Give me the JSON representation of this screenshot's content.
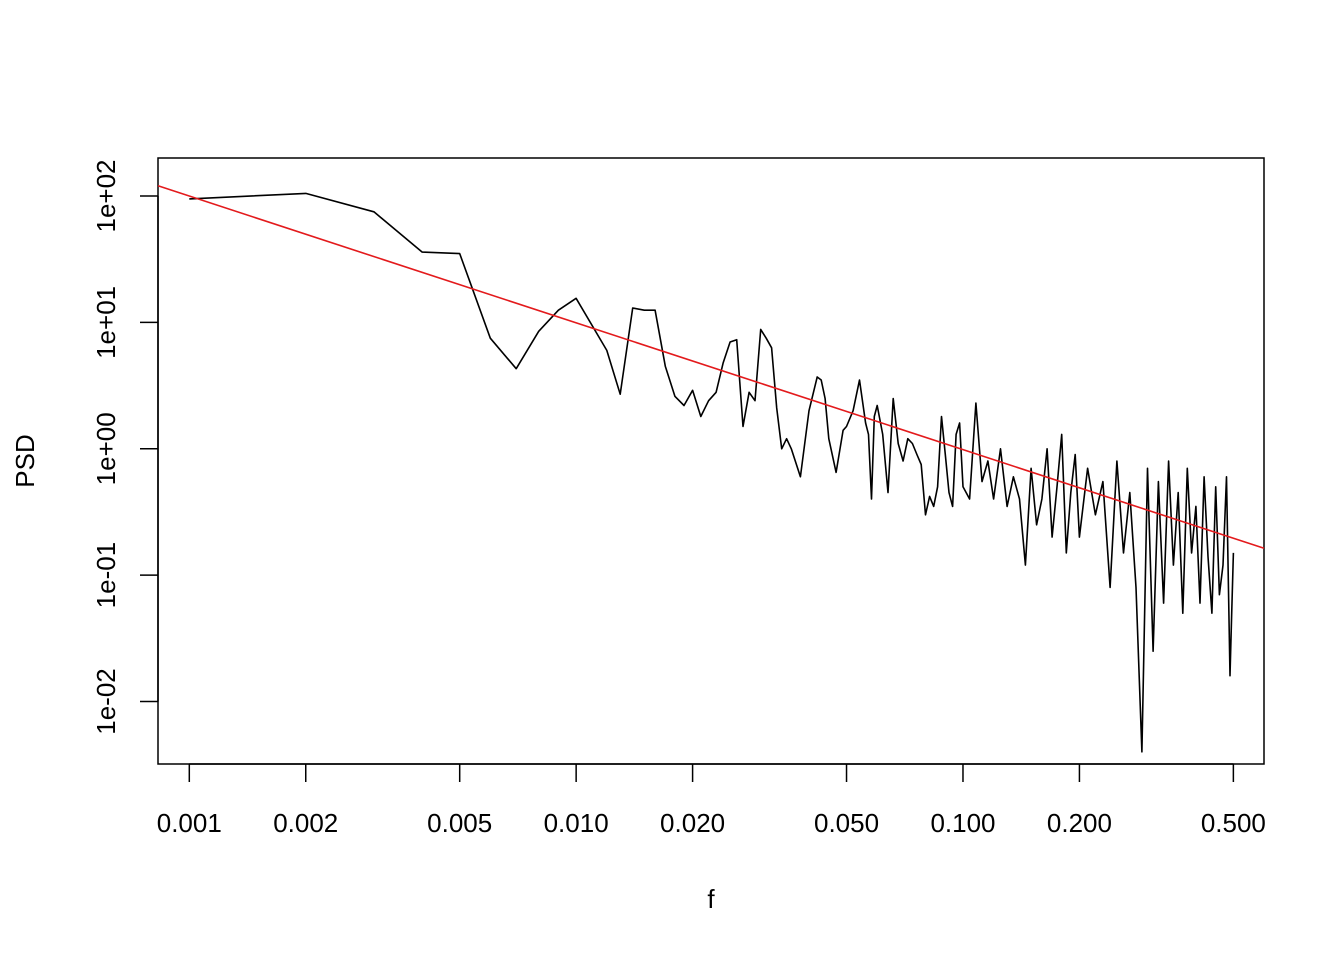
{
  "chart_data": {
    "type": "line",
    "title": "",
    "xlabel": "f",
    "ylabel": "PSD",
    "log_x": true,
    "log_y": true,
    "xlim": [
      0.00083,
      0.6
    ],
    "ylim": [
      0.0032,
      200
    ],
    "grid": false,
    "legend": "none",
    "x_ticks": [
      {
        "value": 0.001,
        "label": "0.001"
      },
      {
        "value": 0.002,
        "label": "0.002"
      },
      {
        "value": 0.005,
        "label": "0.005"
      },
      {
        "value": 0.01,
        "label": "0.010"
      },
      {
        "value": 0.02,
        "label": "0.020"
      },
      {
        "value": 0.05,
        "label": "0.050"
      },
      {
        "value": 0.1,
        "label": "0.100"
      },
      {
        "value": 0.2,
        "label": "0.200"
      },
      {
        "value": 0.5,
        "label": "0.500"
      }
    ],
    "y_ticks": [
      {
        "value": 0.01,
        "label": "1e-02"
      },
      {
        "value": 0.1,
        "label": "1e-01"
      },
      {
        "value": 1,
        "label": "1e+00"
      },
      {
        "value": 10,
        "label": "1e+01"
      },
      {
        "value": 100,
        "label": "1e+02"
      }
    ],
    "series": [
      {
        "color": "#000000",
        "x": [
          0.001,
          0.002,
          0.003,
          0.004,
          0.005,
          0.006,
          0.007,
          0.008,
          0.009,
          0.01,
          0.012,
          0.013,
          0.014,
          0.015,
          0.016,
          0.017,
          0.018,
          0.019,
          0.02,
          0.021,
          0.022,
          0.023,
          0.024,
          0.025,
          0.026,
          0.027,
          0.028,
          0.029,
          0.03,
          0.031,
          0.032,
          0.033,
          0.034,
          0.035,
          0.036,
          0.038,
          0.04,
          0.042,
          0.043,
          0.044,
          0.045,
          0.047,
          0.049,
          0.05,
          0.052,
          0.054,
          0.056,
          0.057,
          0.058,
          0.059,
          0.06,
          0.062,
          0.064,
          0.066,
          0.068,
          0.07,
          0.072,
          0.074,
          0.076,
          0.078,
          0.08,
          0.082,
          0.084,
          0.086,
          0.088,
          0.09,
          0.092,
          0.094,
          0.096,
          0.098,
          0.1,
          0.104,
          0.108,
          0.112,
          0.116,
          0.12,
          0.125,
          0.13,
          0.135,
          0.14,
          0.145,
          0.15,
          0.155,
          0.16,
          0.165,
          0.17,
          0.175,
          0.18,
          0.185,
          0.19,
          0.195,
          0.2,
          0.21,
          0.22,
          0.23,
          0.24,
          0.25,
          0.26,
          0.27,
          0.28,
          0.29,
          0.3,
          0.31,
          0.32,
          0.33,
          0.34,
          0.35,
          0.36,
          0.37,
          0.38,
          0.39,
          0.4,
          0.41,
          0.42,
          0.43,
          0.44,
          0.45,
          0.46,
          0.47,
          0.48,
          0.49,
          0.495,
          0.5
        ],
        "y": [
          95,
          105,
          75,
          36,
          35,
          7.5,
          4.3,
          8.5,
          12.5,
          15.5,
          6,
          2.7,
          13,
          12.5,
          12.5,
          4.5,
          2.6,
          2.2,
          2.9,
          1.8,
          2.4,
          2.8,
          4.8,
          7,
          7.3,
          1.5,
          2.8,
          2.4,
          8.8,
          7.5,
          6.3,
          2.1,
          1.0,
          1.2,
          1.0,
          0.6,
          2.0,
          3.7,
          3.5,
          2.5,
          1.2,
          0.65,
          1.4,
          1.5,
          2.0,
          3.5,
          1.6,
          1.3,
          0.4,
          1.8,
          2.2,
          1.3,
          0.45,
          2.5,
          1.1,
          0.8,
          1.2,
          1.1,
          0.9,
          0.75,
          0.3,
          0.42,
          0.35,
          0.5,
          1.8,
          0.9,
          0.45,
          0.35,
          1.3,
          1.6,
          0.5,
          0.4,
          2.3,
          0.55,
          0.8,
          0.4,
          1.0,
          0.35,
          0.6,
          0.4,
          0.12,
          0.7,
          0.25,
          0.4,
          1.0,
          0.2,
          0.5,
          1.3,
          0.15,
          0.45,
          0.9,
          0.2,
          0.7,
          0.3,
          0.55,
          0.08,
          0.8,
          0.15,
          0.45,
          0.08,
          0.004,
          0.7,
          0.025,
          0.55,
          0.06,
          0.8,
          0.12,
          0.45,
          0.05,
          0.7,
          0.15,
          0.35,
          0.06,
          0.6,
          0.14,
          0.05,
          0.5,
          0.07,
          0.12,
          0.6,
          0.016,
          0.05,
          0.15
        ]
      },
      {
        "color": "#e31a1c",
        "x": [
          0.00083,
          0.6
        ],
        "y": [
          120.5,
          0.163
        ]
      }
    ]
  }
}
